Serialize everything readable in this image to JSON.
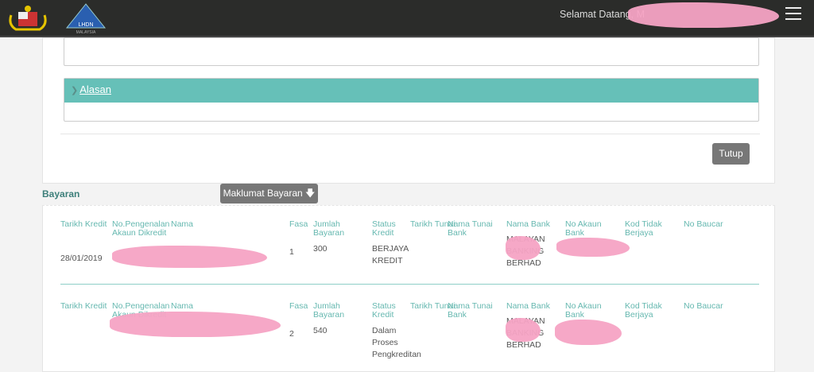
{
  "header": {
    "logo1": "Jata Negara",
    "logo2": "LHDN MALAYSIA",
    "welcome": "Selamat Datang, M",
    "menu_icon": "hamburger-icon"
  },
  "alasan": {
    "title": "Alasan",
    "icon": "chevron-down-icon"
  },
  "close_label": "Tutup",
  "section_title": "Bayaran",
  "info_button": "Maklumat Bayaran",
  "columns": [
    "Tarikh Kredit",
    "No.Pengenalan Akaun Dikredit",
    "Nama",
    "Fasa",
    "Jumlah Bayaran",
    "Status Kredit",
    "Tarikh Tunai",
    "Nama Tunai Bank",
    "Nama Bank",
    "No Akaun Bank",
    "Kod Tidak Berjaya",
    "No Baucar"
  ],
  "rows": [
    {
      "tarikh": "28/01/2019",
      "fasa": "1",
      "jumlah": "300",
      "status": "BERJAYA KREDIT",
      "bank": "MALAYAN BANKING BERHAD"
    },
    {
      "tarikh": "",
      "fasa": "2",
      "jumlah": "540",
      "status": "Dalam Proses Pengkreditan",
      "bank": "MALAYAN BANKING BERHAD"
    }
  ],
  "colors": {
    "accent": "#66c0b8",
    "header": "#2b2c2a",
    "redaction": "#f5a3c4"
  }
}
